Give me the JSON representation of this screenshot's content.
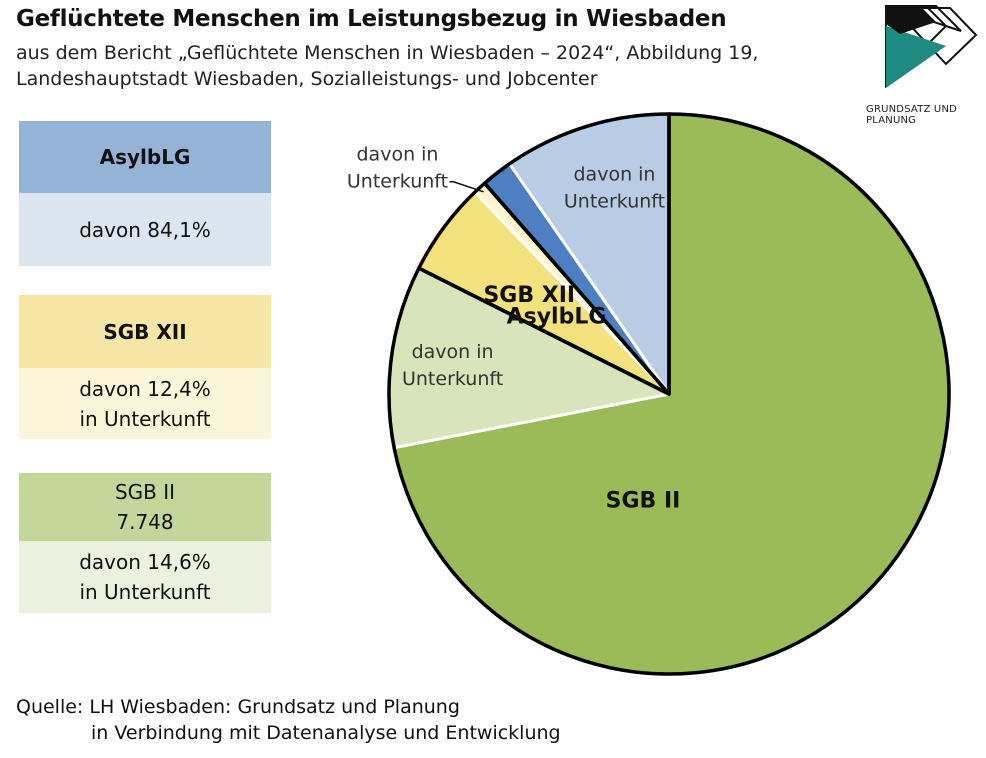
{
  "title": "Geflüchtete Menschen im Leistungsbezug in Wiesbaden",
  "subtitle_line1": "aus dem Bericht „Geflüchtete Menschen in Wiesbaden – 2024“, Abbildung 19,",
  "subtitle_line2": "Landeshauptstadt Wiesbaden, Sozialleistungs- und Jobcenter",
  "logo_text": "GRUNDSATZ UND PLANUNG",
  "cards": {
    "asyl": {
      "head": "AsylbLG",
      "body": "davon 84,1%"
    },
    "sgb12": {
      "head": "SGB XII",
      "body1": "davon 12,4%",
      "body2": "in Unterkunft"
    },
    "sgb2": {
      "head1": "SGB II",
      "head2": "7.748",
      "body1": "davon 14,6%",
      "body2": "in Unterkunft"
    }
  },
  "source": {
    "line1": "Quelle:  LH Wiesbaden: Grundsatz und Planung",
    "line2": "in Verbindung mit Datenanalyse und Entwicklung"
  },
  "chart_data": {
    "type": "pie",
    "start": "12 o'clock, clockwise",
    "slices": [
      {
        "group": "SGB II",
        "label": "SGB II",
        "part": "total",
        "value": 76.1,
        "color": "#9bbb59"
      },
      {
        "group": "SGB II",
        "label": "davon in Unterkunft",
        "part": "davon",
        "value": 11.1,
        "color": "#d7e4bc"
      },
      {
        "group": "SGB XII",
        "label": "SGB XII",
        "part": "total",
        "value": 5.7,
        "color": "#f2e17c"
      },
      {
        "group": "SGB XII",
        "label": "davon in Unterkunft",
        "part": "davon",
        "value": 0.8,
        "color": "#fbf4cc"
      },
      {
        "group": "AsylbLG",
        "label": "AsylbLG",
        "part": "total",
        "value": 1.9,
        "color": "#4f7fc3"
      },
      {
        "group": "AsylbLG",
        "label": "davon in Unterkunft",
        "part": "davon",
        "value": 10.2,
        "color": "#b8cce4"
      }
    ]
  }
}
